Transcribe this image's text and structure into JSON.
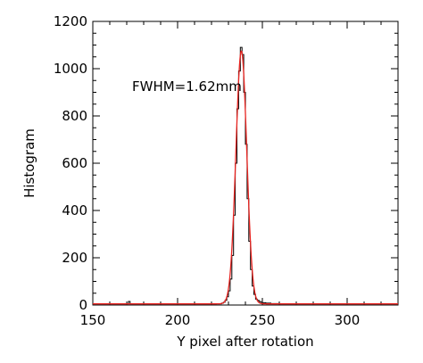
{
  "chart_data": {
    "type": "line",
    "title": "",
    "xlabel": "Y pixel after rotation",
    "ylabel": "Histogram",
    "xlim": [
      150,
      330
    ],
    "ylim": [
      0,
      1200
    ],
    "xticks": [
      150,
      200,
      250,
      300
    ],
    "yticks": [
      0,
      200,
      400,
      600,
      800,
      1000,
      1200
    ],
    "grid": false,
    "annotation": "FWHM=1.62mm",
    "series": [
      {
        "style": "histogram-step",
        "color": "#000000",
        "x": [
          150,
          170,
          171,
          172,
          180,
          225,
          226,
          227,
          228,
          229,
          230,
          231,
          232,
          233,
          234,
          235,
          236,
          237,
          238,
          239,
          240,
          241,
          242,
          243,
          244,
          245,
          246,
          247,
          248,
          249,
          250,
          252,
          255,
          260,
          330
        ],
        "y": [
          5,
          5,
          15,
          5,
          5,
          5,
          8,
          12,
          20,
          35,
          60,
          110,
          210,
          380,
          600,
          830,
          990,
          1090,
          1060,
          900,
          680,
          450,
          270,
          150,
          80,
          45,
          25,
          20,
          15,
          12,
          10,
          8,
          6,
          5,
          5
        ]
      },
      {
        "style": "gaussian-fit",
        "color": "#e8231f",
        "center": 237.6,
        "sigma": 3.2,
        "amplitude": 1070,
        "baseline": 5
      }
    ]
  }
}
